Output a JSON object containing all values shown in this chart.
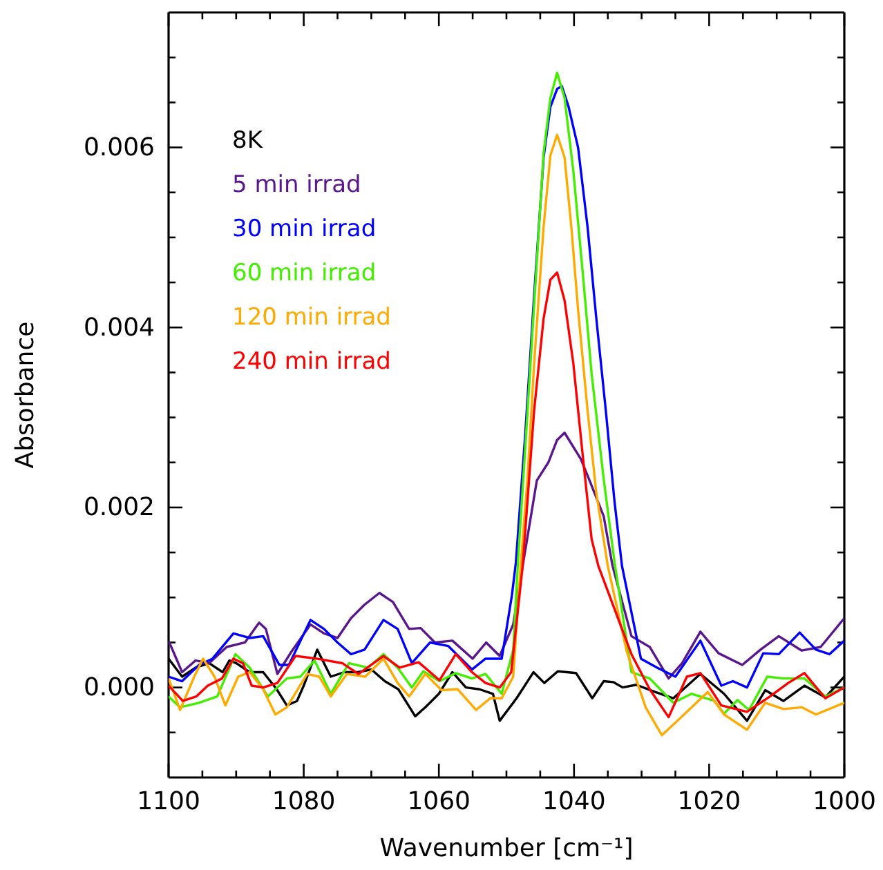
{
  "chart_data": {
    "type": "line",
    "xlabel": "Wavenumber [cm⁻¹]",
    "ylabel": "Absorbance",
    "xlim": [
      1100,
      1000
    ],
    "ylim": [
      -0.001,
      0.0075
    ],
    "xticks": [
      1100,
      {
        "value": 1095,
        "label": null
      },
      {
        "value": 1090,
        "label": null
      },
      {
        "value": 1085,
        "label": null
      },
      1080,
      {
        "value": 1075,
        "label": null
      },
      {
        "value": 1070,
        "label": null
      },
      {
        "value": 1065,
        "label": null
      },
      1060,
      {
        "value": 1055,
        "label": null
      },
      {
        "value": 1050,
        "label": null
      },
      {
        "value": 1045,
        "label": null
      },
      1040,
      {
        "value": 1035,
        "label": null
      },
      {
        "value": 1030,
        "label": null
      },
      {
        "value": 1025,
        "label": null
      },
      1020,
      {
        "value": 1015,
        "label": null
      },
      {
        "value": 1010,
        "label": null
      },
      {
        "value": 1005,
        "label": null
      },
      1000
    ],
    "yticks": [
      {
        "value": -0.0005,
        "label": null
      },
      {
        "value": 0,
        "label": "0.000"
      },
      {
        "value": 0.0005,
        "label": null
      },
      {
        "value": 0.001,
        "label": null
      },
      {
        "value": 0.0015,
        "label": null
      },
      {
        "value": 0.002,
        "label": "0.002"
      },
      {
        "value": 0.0025,
        "label": null
      },
      {
        "value": 0.003,
        "label": null
      },
      {
        "value": 0.0035,
        "label": null
      },
      {
        "value": 0.004,
        "label": "0.004"
      },
      {
        "value": 0.0045,
        "label": null
      },
      {
        "value": 0.005,
        "label": null
      },
      {
        "value": 0.0055,
        "label": null
      },
      {
        "value": 0.006,
        "label": "0.006"
      },
      {
        "value": 0.0065,
        "label": null
      },
      {
        "value": 0.007,
        "label": null
      }
    ],
    "grid": false,
    "legend": "top left",
    "line_style": "solid",
    "series": [
      {
        "name": "8K",
        "color": "#000000",
        "x": [
          1100,
          1098,
          1096,
          1094,
          1092,
          1091,
          1090,
          1088,
          1086,
          1084,
          1082.5,
          1081,
          1080,
          1078,
          1076,
          1074,
          1072,
          1070,
          1068,
          1066,
          1063.5,
          1062,
          1060,
          1058,
          1056,
          1054,
          1052,
          1051,
          1048.5,
          1046,
          1044.4,
          1042.4,
          1039.7,
          1037.3,
          1035.6,
          1034.2,
          1032.8,
          1030.8,
          1028,
          1025.3,
          1021.3,
          1017.8,
          1014.4,
          1011.7,
          1009,
          1005.9,
          1002.8,
          1000
        ],
        "values": [
          0.00032,
          0.00012,
          0.00022,
          0.00027,
          0.00017,
          0.0003,
          0.00027,
          0.00017,
          0.00017,
          -2e-05,
          -0.0002,
          -0.00015,
          2e-05,
          0.00042,
          0.00012,
          0.00017,
          0.00017,
          0.0002,
          7e-05,
          -2e-05,
          -0.00032,
          -0.00022,
          -7e-05,
          0.00017,
          0,
          -2e-05,
          -7e-05,
          -0.00037,
          -0.00012,
          0.00017,
          5e-05,
          0.00018,
          0.00016,
          -0.00012,
          7e-05,
          6e-05,
          0,
          3e-05,
          -5e-05,
          -0.00012,
          0.00015,
          -7e-05,
          -0.00037,
          -3e-05,
          -0.00015,
          2e-05,
          -0.00011,
          0.00012
        ]
      },
      {
        "name": "5 min irrad",
        "color": "#5a168c",
        "x": [
          1100,
          1098,
          1096,
          1094,
          1091.4,
          1088.7,
          1086.6,
          1085.6,
          1083.9,
          1081.8,
          1079,
          1077,
          1075,
          1073,
          1071,
          1068.8,
          1066.8,
          1064.4,
          1062.7,
          1060.6,
          1058,
          1055,
          1053,
          1051,
          1049,
          1047.6,
          1045.5,
          1043.8,
          1042.5,
          1041.4,
          1039,
          1037.7,
          1035.6,
          1034.3,
          1031.5,
          1028.8,
          1026,
          1024,
          1021.3,
          1018.6,
          1015.1,
          1012.4,
          1009.7,
          1006.3,
          1003.5,
          1000
        ],
        "values": [
          0.00052,
          0.00017,
          0.0003,
          0.00027,
          0.00045,
          0.0005,
          0.00072,
          0.00065,
          0.00015,
          0.0004,
          0.0007,
          0.0006,
          0.00055,
          0.00077,
          0.00092,
          0.00105,
          0.00095,
          0.00065,
          0.00066,
          0.0005,
          0.00052,
          0.00032,
          0.0005,
          0.00035,
          0.0007,
          0.00135,
          0.0023,
          0.0025,
          0.00275,
          0.00283,
          0.00254,
          0.0023,
          0.0019,
          0.00135,
          0.00057,
          0.00045,
          0.0001,
          0.00027,
          0.00062,
          0.00038,
          0.00025,
          0.00042,
          0.00057,
          0.00041,
          0.00045,
          0.00077
        ]
      },
      {
        "name": "30 min irrad",
        "color": "#0000ff",
        "x": [
          1100,
          1098,
          1095.5,
          1093.5,
          1090.4,
          1088,
          1086,
          1083.6,
          1082.2,
          1079,
          1077,
          1075,
          1073,
          1071,
          1068.2,
          1066.1,
          1064,
          1061.3,
          1058.6,
          1055.1,
          1053.1,
          1050.7,
          1049.2,
          1048.6,
          1047.2,
          1045.9,
          1044.5,
          1043.5,
          1042.5,
          1041.8,
          1040.8,
          1039.4,
          1038,
          1036.7,
          1035.3,
          1034,
          1032.9,
          1030.1,
          1027.7,
          1025,
          1021.3,
          1018.2,
          1016.5,
          1014.4,
          1012,
          1009.7,
          1006.6,
          1004.2,
          1002.2,
          1000
        ],
        "values": [
          0.00012,
          7e-05,
          0.00025,
          0.00032,
          0.0006,
          0.00055,
          0.00057,
          0.00025,
          0.00025,
          0.00075,
          0.00065,
          0.0005,
          0.00037,
          0.00042,
          0.00075,
          0.00065,
          0.00027,
          0.0005,
          0.00046,
          0.0002,
          0.00032,
          0.00032,
          0.00102,
          0.00139,
          0.00283,
          0.00436,
          0.00589,
          0.00645,
          0.00665,
          0.00668,
          0.00645,
          0.006,
          0.00512,
          0.0041,
          0.00308,
          0.00206,
          0.00135,
          0.00032,
          0.00022,
          0.00012,
          0.00052,
          2e-05,
          7e-05,
          0,
          0.00038,
          0.00037,
          0.00061,
          0.00042,
          0.00037,
          0.00052
        ]
      },
      {
        "name": "60 min irrad",
        "color": "#44ee00",
        "x": [
          1100,
          1098.3,
          1095.5,
          1092.8,
          1090.1,
          1088,
          1085.3,
          1082.5,
          1080.5,
          1078.4,
          1076,
          1073.3,
          1070.5,
          1068.2,
          1066.1,
          1064,
          1062.3,
          1059.9,
          1057.5,
          1055.1,
          1053.1,
          1050.7,
          1049,
          1048.3,
          1047.2,
          1045.9,
          1044.5,
          1043.5,
          1042.5,
          1041.4,
          1040.1,
          1038.7,
          1037.4,
          1035.6,
          1034,
          1031.5,
          1028.8,
          1025.3,
          1022.6,
          1019.2,
          1017.8,
          1015.8,
          1014.1,
          1011.4,
          1009,
          1005.9,
          1002.8,
          1000
        ],
        "values": [
          -0.0001,
          -0.00022,
          -0.00017,
          -0.0001,
          0.00037,
          0.00022,
          -0.0001,
          0.0001,
          0.00012,
          0.0003,
          -7e-05,
          0.00027,
          0.00022,
          0.00037,
          0.00022,
          0,
          0.00018,
          7e-05,
          0.00016,
          0.0001,
          0.00015,
          -7e-05,
          0.00042,
          0.00139,
          0.00268,
          0.00425,
          0.00594,
          0.00655,
          0.00683,
          0.00655,
          0.00574,
          0.0046,
          0.00349,
          0.00231,
          0.00139,
          0.00017,
          0.0001,
          -0.00017,
          -7e-05,
          -0.00015,
          -0.00029,
          -0.00014,
          -0.00025,
          0.00012,
          0.0001,
          0.0001,
          -0.0001,
          0
        ]
      },
      {
        "name": "120 min irrad",
        "color": "#ffaa00",
        "x": [
          1100,
          1098.3,
          1096.2,
          1094.9,
          1093.2,
          1091.6,
          1089.7,
          1088,
          1086,
          1084.2,
          1082.5,
          1079.5,
          1077.7,
          1076,
          1073.6,
          1070.9,
          1068.2,
          1066.1,
          1064.4,
          1062,
          1059.6,
          1057.2,
          1054.5,
          1052.4,
          1050.7,
          1049,
          1047.9,
          1046.9,
          1045.9,
          1044.5,
          1043.5,
          1042.5,
          1041.4,
          1040.4,
          1039.4,
          1038,
          1036.7,
          1035,
          1032.2,
          1029.4,
          1027,
          1024.7,
          1020.2,
          1017.8,
          1014.4,
          1011.7,
          1009,
          1006.3,
          1004.2,
          1000
        ],
        "values": [
          0.0001,
          -0.00025,
          0.00012,
          0.00032,
          0.00012,
          -0.0002,
          0.00012,
          0.00017,
          -2e-05,
          -0.0003,
          -0.00022,
          0.00015,
          0.00012,
          -0.0001,
          0.00015,
          0.00012,
          0.00032,
          5e-05,
          -0.0001,
          0.00015,
          -3e-05,
          -2e-05,
          -0.00025,
          -0.00012,
          -0.00012,
          0.00012,
          0.00135,
          0.00231,
          0.0036,
          0.00512,
          0.00591,
          0.00614,
          0.00589,
          0.00512,
          0.0042,
          0.00308,
          0.00216,
          0.00135,
          0.0004,
          -0.00022,
          -0.00053,
          -0.00037,
          -5e-05,
          -0.0003,
          -0.00047,
          -0.00017,
          -0.00024,
          -0.00022,
          -0.0003,
          -0.00017
        ]
      },
      {
        "name": "240 min irrad",
        "color": "#ff0000",
        "x": [
          1100,
          1097.9,
          1095.9,
          1094.2,
          1092.1,
          1090.4,
          1089,
          1087.7,
          1086,
          1083.9,
          1081.2,
          1078.1,
          1074.3,
          1071.9,
          1068.2,
          1065.8,
          1063,
          1059.9,
          1057.5,
          1055.1,
          1053.1,
          1051,
          1049.3,
          1047.6,
          1046.9,
          1045.9,
          1044.5,
          1043.5,
          1042.5,
          1041.4,
          1040.1,
          1038.7,
          1037.4,
          1036.4,
          1031.5,
          1028.8,
          1026,
          1023.3,
          1021.3,
          1018.2,
          1014.4,
          1011,
          1008.3,
          1005.9,
          1002.8,
          1000
        ],
        "values": [
          2e-05,
          -0.00015,
          -0.0001,
          2e-05,
          0.0001,
          0.00032,
          0.00027,
          2e-05,
          0,
          5e-05,
          0.00035,
          0.00032,
          0.00027,
          0.00015,
          0.00035,
          0.00022,
          0.00028,
          8e-05,
          0.00037,
          0.00017,
          5e-05,
          0,
          0.00017,
          0.00135,
          0.00206,
          0.00308,
          0.0041,
          0.00453,
          0.00461,
          0.0043,
          0.0036,
          0.00257,
          0.00165,
          0.00135,
          0.00037,
          -2e-05,
          -0.00033,
          0.00012,
          0.00016,
          -0.0002,
          -0.00027,
          -0.0001,
          5e-05,
          0.00016,
          -0.00012,
          0
        ]
      }
    ]
  }
}
